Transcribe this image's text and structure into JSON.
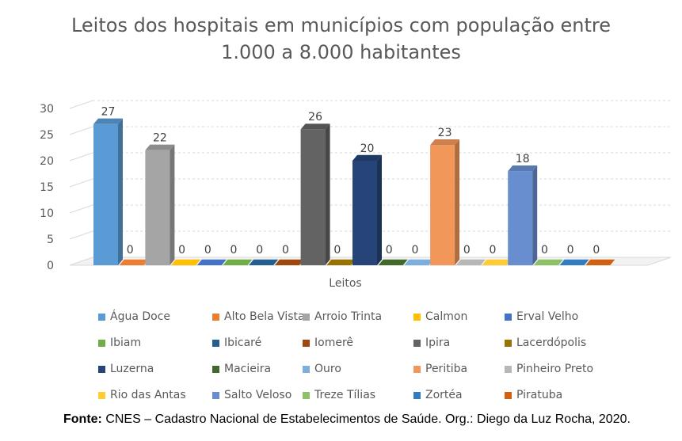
{
  "chart_data": {
    "type": "bar",
    "title_line1": "Leitos dos hospitais em municípios com população entre",
    "title_line2": "1.000 a 8.000 habitantes",
    "xlabel": "Leitos",
    "ylabel": "",
    "ylim": [
      0,
      30
    ],
    "yticks": [
      "0",
      "5",
      "10",
      "15",
      "20",
      "25",
      "30"
    ],
    "grid": true,
    "legend_position": "bottom",
    "categories": [
      "Leitos"
    ],
    "series": [
      {
        "name": "Água Doce",
        "value": 27,
        "label": "27",
        "color": "#5B9BD5"
      },
      {
        "name": "Alto Bela Vista",
        "value": 0,
        "label": "0",
        "color": "#ED7D31"
      },
      {
        "name": "Arroio Trinta",
        "value": 22,
        "label": "22",
        "color": "#A5A5A5"
      },
      {
        "name": "Calmon",
        "value": 0,
        "label": "0",
        "color": "#FFC000"
      },
      {
        "name": "Erval Velho",
        "value": 0,
        "label": "0",
        "color": "#4472C4"
      },
      {
        "name": "Ibiam",
        "value": 0,
        "label": "0",
        "color": "#70AD47"
      },
      {
        "name": "Ibicaré",
        "value": 0,
        "label": "0",
        "color": "#255E91"
      },
      {
        "name": "Iomerê",
        "value": 0,
        "label": "0",
        "color": "#9E480E"
      },
      {
        "name": "Ipira",
        "value": 26,
        "label": "26",
        "color": "#636363"
      },
      {
        "name": "Lacerdópolis",
        "value": 0,
        "label": "0",
        "color": "#997300"
      },
      {
        "name": "Luzerna",
        "value": 20,
        "label": "20",
        "color": "#264478"
      },
      {
        "name": "Macieira",
        "value": 0,
        "label": "0",
        "color": "#43682B"
      },
      {
        "name": "Ouro",
        "value": 0,
        "label": "0",
        "color": "#7CAFDD"
      },
      {
        "name": "Peritiba",
        "value": 23,
        "label": "23",
        "color": "#F1975A"
      },
      {
        "name": "Pinheiro Preto",
        "value": 0,
        "label": "0",
        "color": "#B7B7B7"
      },
      {
        "name": "Rio das Antas",
        "value": 0,
        "label": "0",
        "color": "#FFCD33"
      },
      {
        "name": "Salto Veloso",
        "value": 18,
        "label": "18",
        "color": "#698ED0"
      },
      {
        "name": "Treze Tílias",
        "value": 0,
        "label": "0",
        "color": "#8CC168"
      },
      {
        "name": "Zortéa",
        "value": 0,
        "label": "0",
        "color": "#327DC2"
      },
      {
        "name": "Piratuba",
        "value": 0,
        "label": "0",
        "color": "#D26012"
      }
    ]
  },
  "source": {
    "label": "Fonte:",
    "text": " CNES – Cadastro Nacional de Estabelecimentos de Saúde. Org.: Diego da Luz Rocha, 2020."
  }
}
